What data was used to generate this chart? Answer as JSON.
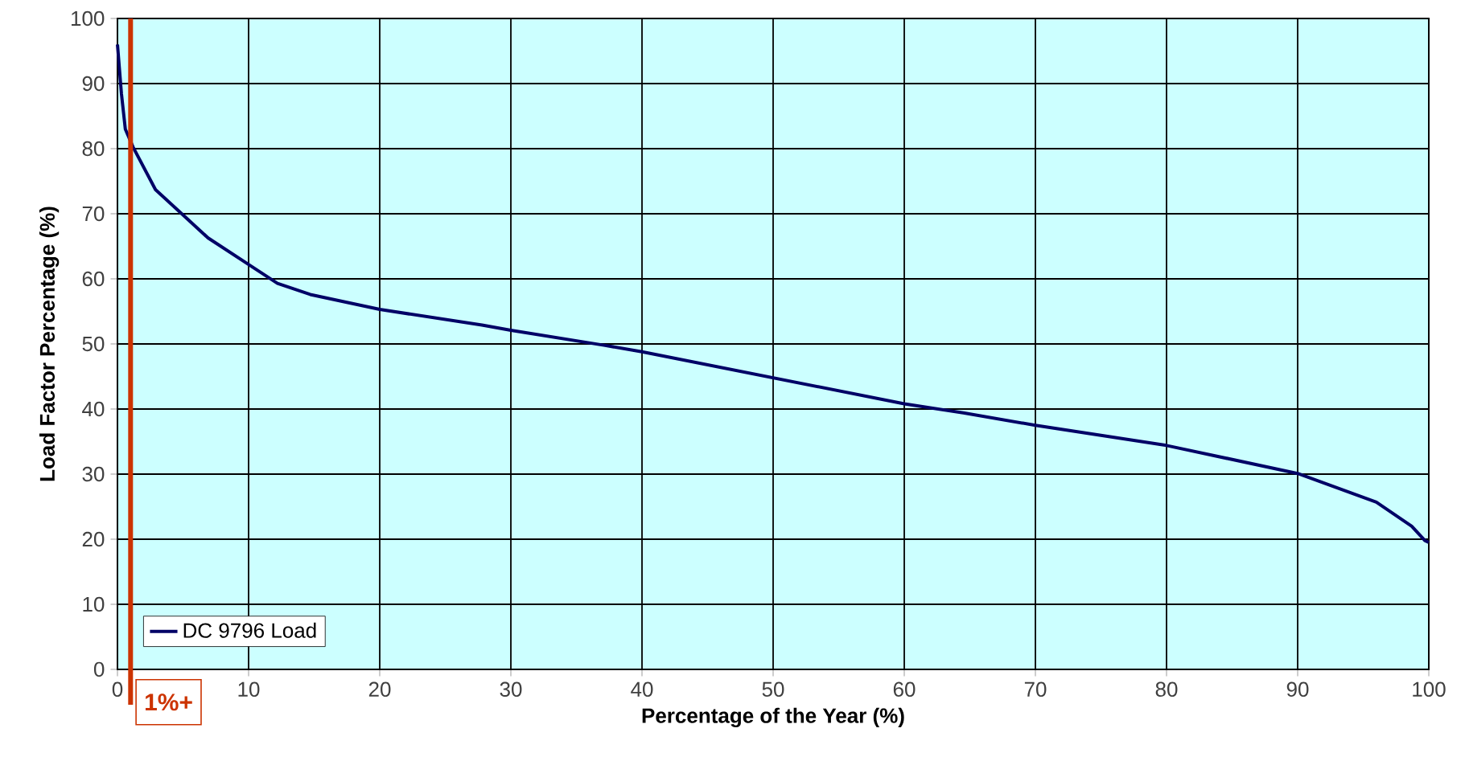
{
  "chart_data": {
    "type": "line",
    "xlabel": "Percentage of the Year (%)",
    "ylabel": "Load Factor Percentage (%)",
    "x": [
      0,
      0.3,
      0.6,
      1.2,
      2.9,
      4.9,
      6.9,
      10,
      12.2,
      14.7,
      20,
      27.8,
      30,
      37.1,
      40,
      50,
      60,
      64.5,
      70,
      80,
      90,
      96,
      98.7,
      99.7,
      100
    ],
    "series": [
      {
        "name": "DC 9796 Load",
        "color": "#000066",
        "values": [
          96,
          88.5,
          83,
          80.2,
          73.7,
          70,
          66.3,
          62.2,
          59.3,
          57.6,
          55.3,
          52.9,
          52.1,
          49.8,
          48.8,
          44.8,
          40.8,
          39.4,
          37.5,
          34.4,
          30.1,
          25.7,
          22,
          19.8,
          19.5
        ]
      }
    ],
    "xlim": [
      0,
      100
    ],
    "ylim": [
      0,
      100
    ],
    "xticks": [
      0,
      10,
      20,
      30,
      40,
      50,
      60,
      70,
      80,
      90,
      100
    ],
    "yticks": [
      0,
      10,
      20,
      30,
      40,
      50,
      60,
      70,
      80,
      90,
      100
    ],
    "grid": true,
    "legend": "bottom left",
    "ref_lines": [
      {
        "axis": "x",
        "value": 1,
        "label": "1%+",
        "color": "#cc3300"
      }
    ]
  }
}
